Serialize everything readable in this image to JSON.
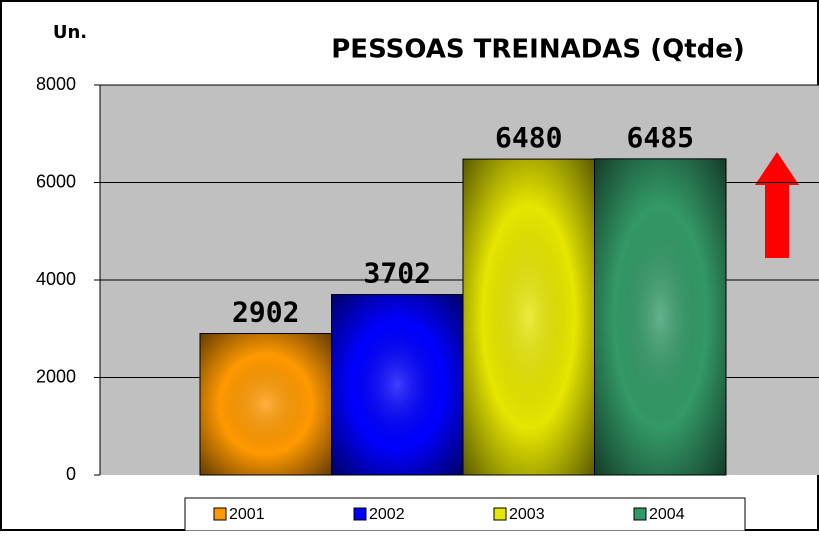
{
  "chart_data": {
    "type": "bar",
    "title": "PESSOAS TREINADAS (Qtde)",
    "y_label": "Un.",
    "series": [
      {
        "name": "2001",
        "color": "#ff9900",
        "values": [
          2902
        ]
      },
      {
        "name": "2002",
        "color": "#0000ff",
        "values": [
          3702
        ]
      },
      {
        "name": "2003",
        "color": "#e6e600",
        "values": [
          6480
        ]
      },
      {
        "name": "2004",
        "color": "#339966",
        "values": [
          6485
        ]
      }
    ],
    "ylim": [
      0,
      8000
    ],
    "yticks": [
      0,
      2000,
      4000,
      6000,
      8000
    ],
    "grid": true,
    "legend": "bottom"
  }
}
